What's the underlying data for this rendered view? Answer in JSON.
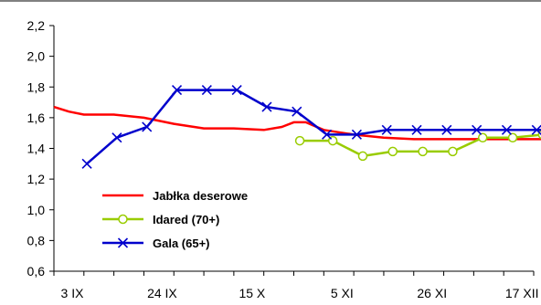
{
  "chart_data": {
    "type": "line",
    "ylim": [
      0.6,
      2.2
    ],
    "y_ticks": [
      "0,6",
      "0,8",
      "1,0",
      "1,2",
      "1,4",
      "1,6",
      "1,8",
      "2,0",
      "2,2"
    ],
    "x_tick_labels": [
      "3 IX",
      "24 IX",
      "15 X",
      "5 XI",
      "26 XI",
      "17 XII"
    ],
    "x_tick_count": 17,
    "grid": false,
    "legend_position": "bottom-left",
    "series": [
      {
        "name": "Jabłka deserowe",
        "color": "#ff0000",
        "marker": "none",
        "points": [
          [
            0.0,
            1.67
          ],
          [
            0.5,
            1.64
          ],
          [
            1.0,
            1.62
          ],
          [
            2.0,
            1.62
          ],
          [
            3.0,
            1.6
          ],
          [
            4.0,
            1.56
          ],
          [
            5.0,
            1.53
          ],
          [
            6.0,
            1.53
          ],
          [
            7.0,
            1.52
          ],
          [
            7.6,
            1.54
          ],
          [
            8.0,
            1.57
          ],
          [
            8.4,
            1.57
          ],
          [
            9.0,
            1.52
          ],
          [
            10.0,
            1.49
          ],
          [
            11.0,
            1.47
          ],
          [
            12.0,
            1.46
          ],
          [
            13.0,
            1.46
          ],
          [
            14.0,
            1.46
          ],
          [
            15.0,
            1.46
          ],
          [
            16.0,
            1.46
          ],
          [
            17.0,
            1.46
          ],
          [
            18.0,
            1.46
          ]
        ]
      },
      {
        "name": "Idared (70+)",
        "color": "#99cc00",
        "marker": "circle",
        "points": [
          [
            8.2,
            1.45
          ],
          [
            9.3,
            1.45
          ],
          [
            10.3,
            1.35
          ],
          [
            11.3,
            1.38
          ],
          [
            12.3,
            1.38
          ],
          [
            13.3,
            1.38
          ],
          [
            14.3,
            1.47
          ],
          [
            15.3,
            1.47
          ],
          [
            16.3,
            1.49
          ],
          [
            17.3,
            1.47
          ]
        ]
      },
      {
        "name": "Gala (65+)",
        "color": "#0000cc",
        "marker": "x",
        "points": [
          [
            1.1,
            1.3
          ],
          [
            2.1,
            1.47
          ],
          [
            3.1,
            1.54
          ],
          [
            4.1,
            1.78
          ],
          [
            5.1,
            1.78
          ],
          [
            6.1,
            1.78
          ],
          [
            7.1,
            1.67
          ],
          [
            8.1,
            1.64
          ],
          [
            9.1,
            1.49
          ],
          [
            10.1,
            1.49
          ],
          [
            11.1,
            1.52
          ],
          [
            12.1,
            1.52
          ],
          [
            13.1,
            1.52
          ],
          [
            14.1,
            1.52
          ],
          [
            15.1,
            1.52
          ],
          [
            16.1,
            1.52
          ],
          [
            17.1,
            1.52
          ]
        ]
      }
    ]
  }
}
